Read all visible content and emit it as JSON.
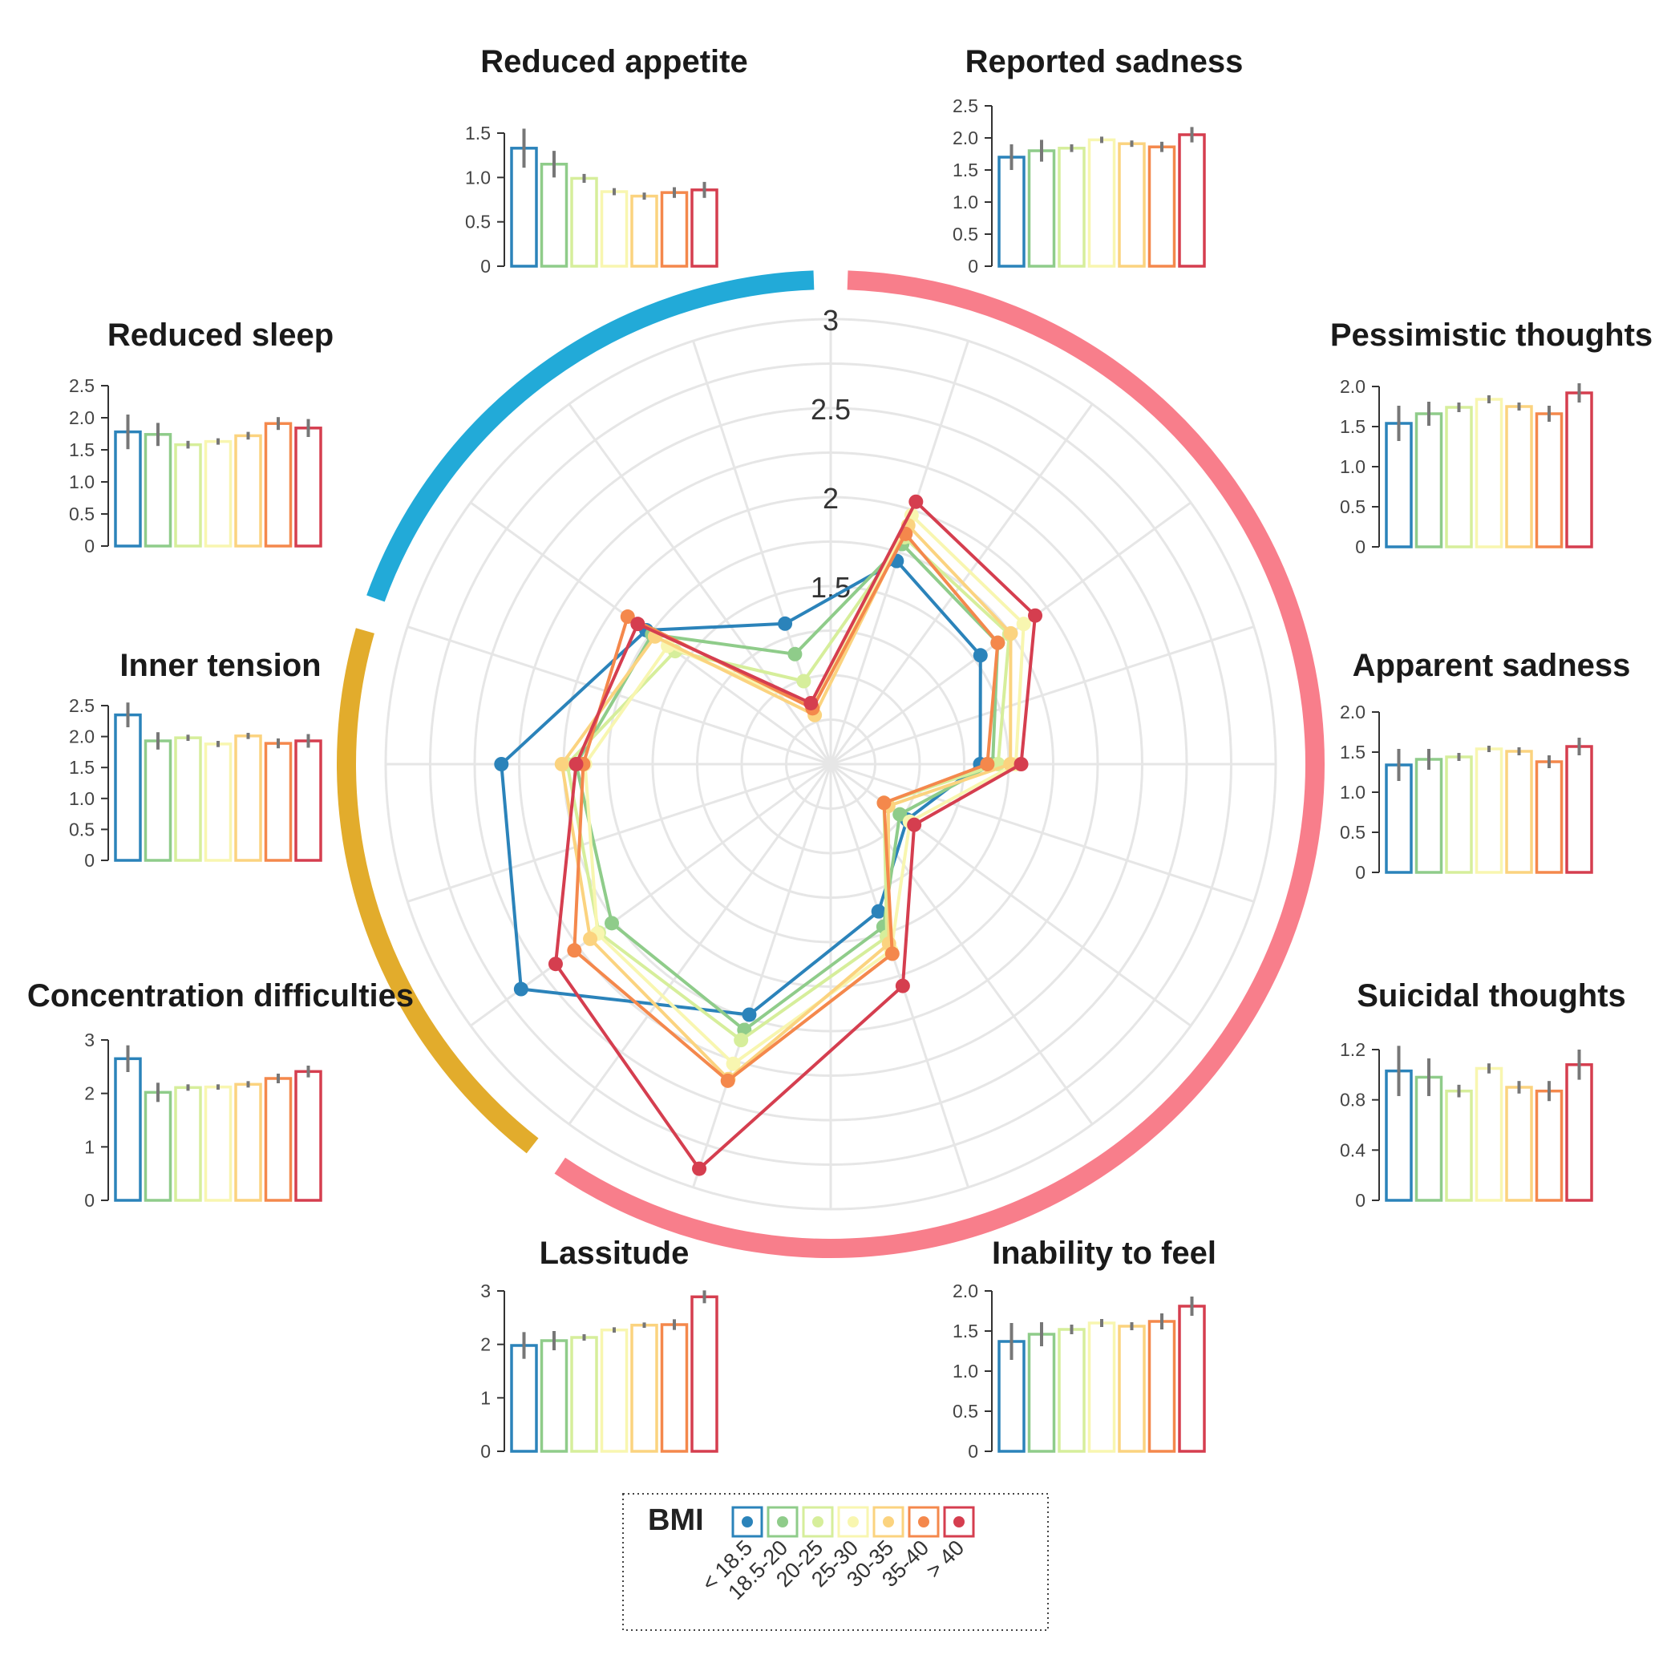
{
  "chart_data": [
    {
      "type": "radar",
      "radial_ticks": [
        "1.5",
        "2",
        "2.5",
        "3"
      ],
      "rlim": [
        0.5,
        3
      ],
      "axes": [
        "Reduced appetite",
        "Reported sadness",
        "Pessimistic thoughts",
        "Apparent sadness",
        "Suicidal thoughts",
        "Inability to feel",
        "Lassitude",
        "Concentration difficulties",
        "Inner tension",
        "Reduced sleep"
      ],
      "series": [
        {
          "name": "< 18.5",
          "color": "#2b83ba",
          "values": [
            1.33,
            1.7,
            1.54,
            1.34,
            1.03,
            1.37,
            1.98,
            2.65,
            2.35,
            1.78
          ]
        },
        {
          "name": "18.5-20",
          "color": "#8fcc8a",
          "values": [
            1.15,
            1.8,
            1.66,
            1.41,
            0.98,
            1.46,
            2.07,
            2.02,
            1.93,
            1.74
          ]
        },
        {
          "name": "20-25",
          "color": "#d6ee9b",
          "values": [
            0.99,
            1.84,
            1.74,
            1.44,
            0.87,
            1.52,
            2.13,
            2.11,
            1.98,
            1.58
          ]
        },
        {
          "name": "25-30",
          "color": "#f8f6b0",
          "values": [
            0.84,
            1.97,
            1.84,
            1.54,
            1.05,
            1.6,
            2.27,
            2.12,
            1.88,
            1.63
          ]
        },
        {
          "name": "30-35",
          "color": "#fbd37f",
          "values": [
            0.79,
            1.91,
            1.75,
            1.51,
            0.9,
            1.56,
            2.36,
            2.17,
            2.01,
            1.72
          ]
        },
        {
          "name": "35-40",
          "color": "#f4884c",
          "values": [
            0.83,
            1.86,
            1.66,
            1.38,
            0.87,
            1.62,
            2.37,
            2.28,
            1.89,
            1.91
          ]
        },
        {
          "name": "> 40",
          "color": "#d53e4f",
          "values": [
            0.86,
            2.05,
            1.92,
            1.57,
            1.08,
            1.81,
            2.89,
            2.41,
            1.93,
            1.84
          ]
        }
      ],
      "groups": [
        {
          "color": "#22aad8",
          "from": 9,
          "to": 0
        },
        {
          "color": "#f87e8b",
          "from": 1,
          "to": 6
        },
        {
          "color": "#e2ac2c",
          "from": 7,
          "to": 8
        }
      ]
    },
    {
      "type": "bar",
      "title": "Reduced appetite",
      "categories": [
        "< 18.5",
        "18.5-20",
        "20-25",
        "25-30",
        "30-35",
        "35-40",
        "> 40"
      ],
      "values": [
        1.33,
        1.15,
        0.99,
        0.84,
        0.79,
        0.83,
        0.86
      ],
      "errors": [
        0.22,
        0.15,
        0.05,
        0.04,
        0.04,
        0.06,
        0.09
      ],
      "yticks": [
        "0",
        "0.5",
        "1.0",
        "1.5"
      ],
      "ylim": [
        0,
        1.5
      ]
    },
    {
      "type": "bar",
      "title": "Reported sadness",
      "categories": [
        "< 18.5",
        "18.5-20",
        "20-25",
        "25-30",
        "30-35",
        "35-40",
        "> 40"
      ],
      "values": [
        1.7,
        1.8,
        1.84,
        1.97,
        1.91,
        1.86,
        2.05
      ],
      "errors": [
        0.2,
        0.17,
        0.06,
        0.05,
        0.05,
        0.08,
        0.12
      ],
      "yticks": [
        "0",
        "0.5",
        "1.0",
        "1.5",
        "2.0",
        "2.5"
      ],
      "ylim": [
        0,
        2.5
      ]
    },
    {
      "type": "bar",
      "title": "Pessimistic thoughts",
      "categories": [
        "< 18.5",
        "18.5-20",
        "20-25",
        "25-30",
        "30-35",
        "35-40",
        "> 40"
      ],
      "values": [
        1.54,
        1.66,
        1.74,
        1.84,
        1.75,
        1.66,
        1.92
      ],
      "errors": [
        0.22,
        0.15,
        0.06,
        0.05,
        0.05,
        0.1,
        0.12
      ],
      "yticks": [
        "0",
        "0.5",
        "1.0",
        "1.5",
        "2.0"
      ],
      "ylim": [
        0,
        2.0
      ]
    },
    {
      "type": "bar",
      "title": "Apparent sadness",
      "categories": [
        "< 18.5",
        "18.5-20",
        "20-25",
        "25-30",
        "30-35",
        "35-40",
        "> 40"
      ],
      "values": [
        1.34,
        1.41,
        1.44,
        1.54,
        1.51,
        1.38,
        1.57
      ],
      "errors": [
        0.2,
        0.13,
        0.05,
        0.04,
        0.05,
        0.08,
        0.11
      ],
      "yticks": [
        "0",
        "0.5",
        "1.0",
        "1.5",
        "2.0"
      ],
      "ylim": [
        0,
        2.0
      ]
    },
    {
      "type": "bar",
      "title": "Suicidal thoughts",
      "categories": [
        "< 18.5",
        "18.5-20",
        "20-25",
        "25-30",
        "30-35",
        "35-40",
        "> 40"
      ],
      "values": [
        1.03,
        0.98,
        0.87,
        1.05,
        0.9,
        0.87,
        1.08
      ],
      "errors": [
        0.2,
        0.15,
        0.05,
        0.04,
        0.05,
        0.08,
        0.12
      ],
      "yticks": [
        "0",
        "0.4",
        "0.8",
        "1.2"
      ],
      "ylim": [
        0,
        1.2
      ]
    },
    {
      "type": "bar",
      "title": "Inability to feel",
      "categories": [
        "< 18.5",
        "18.5-20",
        "20-25",
        "25-30",
        "30-35",
        "35-40",
        "> 40"
      ],
      "values": [
        1.37,
        1.46,
        1.52,
        1.6,
        1.56,
        1.62,
        1.81
      ],
      "errors": [
        0.23,
        0.15,
        0.06,
        0.05,
        0.05,
        0.1,
        0.12
      ],
      "yticks": [
        "0",
        "0.5",
        "1.0",
        "1.5",
        "2.0"
      ],
      "ylim": [
        0,
        2.0
      ]
    },
    {
      "type": "bar",
      "title": "Lassitude",
      "categories": [
        "< 18.5",
        "18.5-20",
        "20-25",
        "25-30",
        "30-35",
        "35-40",
        "> 40"
      ],
      "values": [
        1.98,
        2.07,
        2.13,
        2.27,
        2.36,
        2.37,
        2.89
      ],
      "errors": [
        0.25,
        0.18,
        0.06,
        0.05,
        0.05,
        0.1,
        0.12
      ],
      "yticks": [
        "0",
        "1",
        "2",
        "3"
      ],
      "ylim": [
        0,
        3
      ]
    },
    {
      "type": "bar",
      "title": "Concentration difficulties",
      "categories": [
        "< 18.5",
        "18.5-20",
        "20-25",
        "25-30",
        "30-35",
        "35-40",
        "> 40"
      ],
      "values": [
        2.65,
        2.02,
        2.11,
        2.12,
        2.17,
        2.28,
        2.41
      ],
      "errors": [
        0.25,
        0.18,
        0.06,
        0.05,
        0.06,
        0.09,
        0.11
      ],
      "yticks": [
        "0",
        "1",
        "2",
        "3"
      ],
      "ylim": [
        0,
        3
      ]
    },
    {
      "type": "bar",
      "title": "Inner tension",
      "categories": [
        "< 18.5",
        "18.5-20",
        "20-25",
        "25-30",
        "30-35",
        "35-40",
        "> 40"
      ],
      "values": [
        2.35,
        1.93,
        1.98,
        1.88,
        2.01,
        1.89,
        1.93
      ],
      "errors": [
        0.2,
        0.14,
        0.05,
        0.05,
        0.05,
        0.08,
        0.11
      ],
      "yticks": [
        "0",
        "0.5",
        "1.0",
        "1.5",
        "2.0",
        "2.5"
      ],
      "ylim": [
        0,
        2.5
      ]
    },
    {
      "type": "bar",
      "title": "Reduced sleep",
      "categories": [
        "< 18.5",
        "18.5-20",
        "20-25",
        "25-30",
        "30-35",
        "35-40",
        "> 40"
      ],
      "values": [
        1.78,
        1.74,
        1.58,
        1.63,
        1.72,
        1.91,
        1.84
      ],
      "errors": [
        0.27,
        0.18,
        0.06,
        0.05,
        0.06,
        0.1,
        0.14
      ],
      "yticks": [
        "0",
        "0.5",
        "1.0",
        "1.5",
        "2.0",
        "2.5"
      ],
      "ylim": [
        0,
        2.5
      ]
    }
  ],
  "legend": {
    "title": "BMI",
    "items": [
      {
        "label": "< 18.5",
        "color": "#2b83ba"
      },
      {
        "label": "18.5-20",
        "color": "#8fcc8a"
      },
      {
        "label": "20-25",
        "color": "#d6ee9b"
      },
      {
        "label": "25-30",
        "color": "#f8f6b0"
      },
      {
        "label": "30-35",
        "color": "#fbd37f"
      },
      {
        "label": "35-40",
        "color": "#f4884c"
      },
      {
        "label": "> 40",
        "color": "#d53e4f"
      }
    ]
  }
}
